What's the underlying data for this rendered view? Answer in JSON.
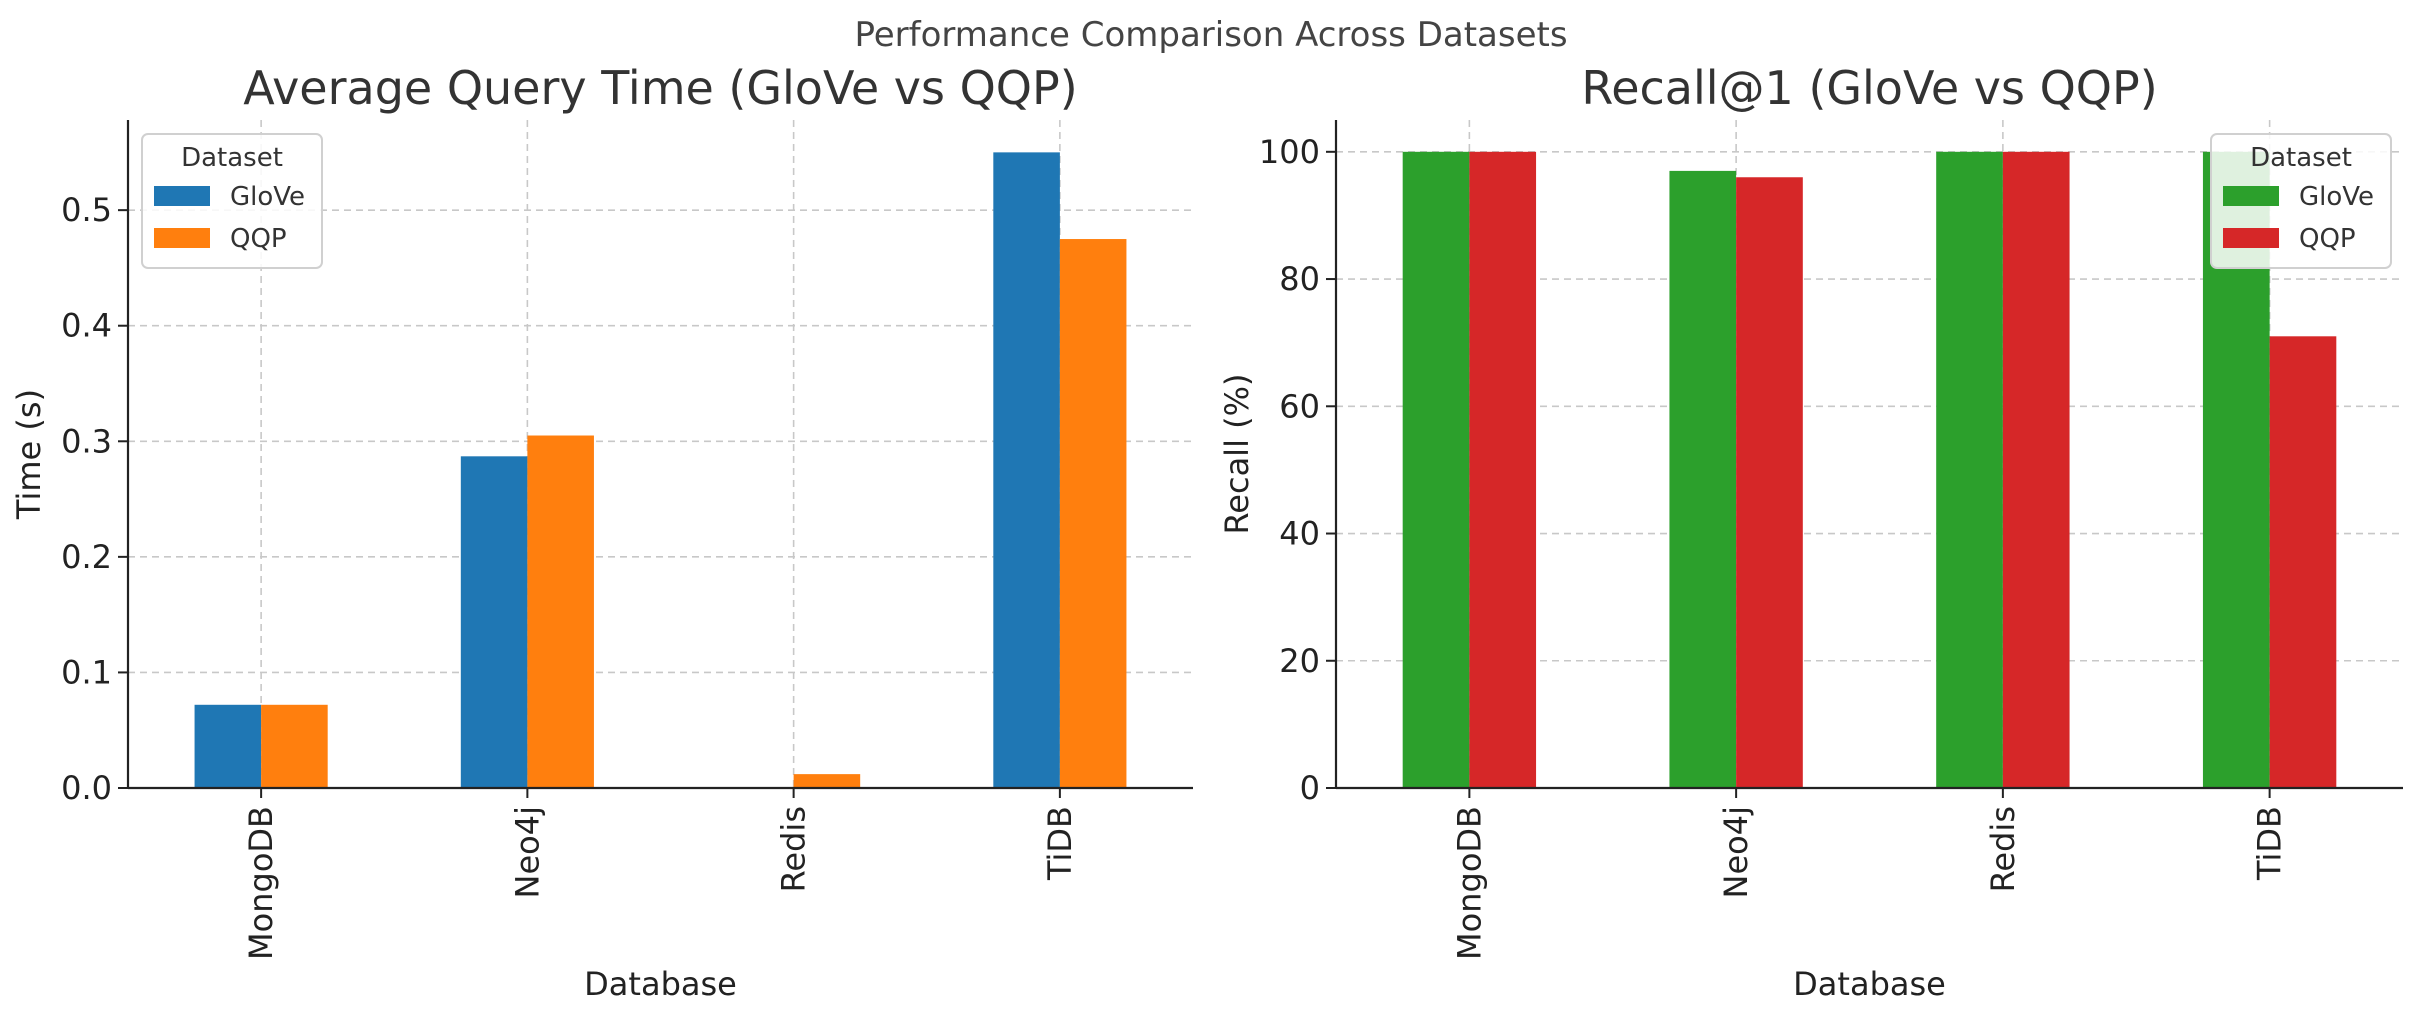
{
  "figure": {
    "suptitle": "Performance Comparison Across Datasets"
  },
  "chart_data": [
    {
      "type": "bar",
      "title": "Average Query Time (GloVe vs QQP)",
      "xlabel": "Database",
      "ylabel": "Time (s)",
      "categories": [
        "MongoDB",
        "Neo4j",
        "Redis",
        "TiDB"
      ],
      "series": [
        {
          "name": "GloVe",
          "color": "#1f77b4",
          "values": [
            0.072,
            0.287,
            0.0,
            0.55
          ]
        },
        {
          "name": "QQP",
          "color": "#ff7f0e",
          "values": [
            0.072,
            0.305,
            0.012,
            0.475
          ]
        }
      ],
      "ylim": [
        0,
        0.578
      ],
      "yticks": [
        0.0,
        0.1,
        0.2,
        0.3,
        0.4,
        0.5
      ],
      "ytick_labels": [
        "0.0",
        "0.1",
        "0.2",
        "0.3",
        "0.4",
        "0.5"
      ],
      "legend": {
        "title": "Dataset",
        "position": "top-left"
      },
      "grid": true
    },
    {
      "type": "bar",
      "title": "Recall@1 (GloVe vs QQP)",
      "xlabel": "Database",
      "ylabel": "Recall (%)",
      "categories": [
        "MongoDB",
        "Neo4j",
        "Redis",
        "TiDB"
      ],
      "series": [
        {
          "name": "GloVe",
          "color": "#2ca02c",
          "values": [
            100,
            97,
            100,
            100
          ]
        },
        {
          "name": "QQP",
          "color": "#d62728",
          "values": [
            100,
            96,
            100,
            71
          ]
        }
      ],
      "ylim": [
        0,
        105
      ],
      "yticks": [
        0,
        20,
        40,
        60,
        80,
        100
      ],
      "ytick_labels": [
        "0",
        "20",
        "40",
        "60",
        "80",
        "100"
      ],
      "legend": {
        "title": "Dataset",
        "position": "top-right"
      },
      "grid": true
    }
  ]
}
